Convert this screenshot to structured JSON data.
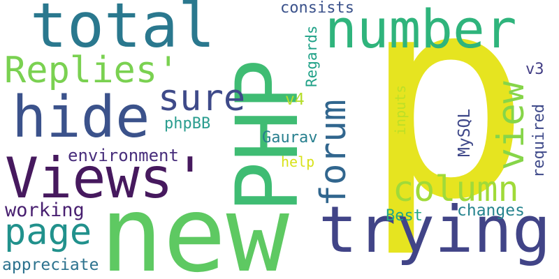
{
  "word_cloud": {
    "words": [
      {
        "text": "p",
        "color": "#e6e420"
      },
      {
        "text": "new",
        "color": "#5ec962"
      },
      {
        "text": "PHP",
        "color": "#3fbc73"
      },
      {
        "text": "trying",
        "color": "#414487"
      },
      {
        "text": "Views'",
        "color": "#46195e"
      },
      {
        "text": "number",
        "color": "#2fb47c"
      },
      {
        "text": "total",
        "color": "#2a788e"
      },
      {
        "text": "hide",
        "color": "#3b528b"
      },
      {
        "text": "column",
        "color": "#a0da39"
      },
      {
        "text": "forum",
        "color": "#31668e"
      },
      {
        "text": "view",
        "color": "#86d549"
      },
      {
        "text": "Replies'",
        "color": "#7ad151"
      },
      {
        "text": "page",
        "color": "#21918c"
      },
      {
        "text": "sure",
        "color": "#3e4a89"
      },
      {
        "text": "environment",
        "color": "#472d7b"
      },
      {
        "text": "working",
        "color": "#481f70"
      },
      {
        "text": "appreciate",
        "color": "#2c728e"
      },
      {
        "text": "consists",
        "color": "#3b528b"
      },
      {
        "text": "phpBB",
        "color": "#2a9d8f"
      },
      {
        "text": "Gaurav",
        "color": "#277f8e"
      },
      {
        "text": "changes",
        "color": "#25838e"
      },
      {
        "text": "Best",
        "color": "#22a884"
      },
      {
        "text": "help",
        "color": "#d8e219"
      },
      {
        "text": "v4",
        "color": "#b5de2b"
      },
      {
        "text": "v3",
        "color": "#433e85"
      },
      {
        "text": "MySQL",
        "color": "#3f4889"
      },
      {
        "text": "Regards",
        "color": "#1fa187"
      },
      {
        "text": "inputs",
        "color": "#bddf26"
      },
      {
        "text": "required",
        "color": "#3e4989"
      }
    ]
  }
}
